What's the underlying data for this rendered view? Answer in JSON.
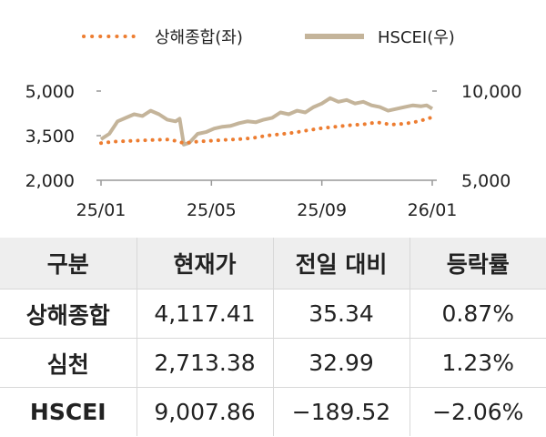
{
  "chart_data": {
    "type": "line",
    "legend": {
      "placement": "top-center",
      "entries": [
        {
          "label": "상해종합(좌)",
          "color": "#ed7d31",
          "style": "dotted"
        },
        {
          "label": "HSCEI(우)",
          "color": "#c4b49a",
          "style": "solid"
        }
      ]
    },
    "x_tick_labels": [
      "25/01",
      "25/05",
      "25/09",
      "26/01"
    ],
    "x_tick_positions": [
      0,
      4,
      8,
      12
    ],
    "xlim": [
      0,
      12
    ],
    "y_left": {
      "ticks": [
        2000,
        3500,
        5000
      ],
      "tick_labels": [
        "2,000",
        "3,500",
        "5,000"
      ],
      "ylim": [
        2000,
        5000
      ]
    },
    "y_right": {
      "ticks": [
        5000,
        10000
      ],
      "tick_labels": [
        "5,000",
        "10,000"
      ],
      "ylim": [
        5000,
        10000
      ]
    },
    "series": [
      {
        "name": "상해종합(좌)",
        "axis": "left",
        "color": "#ed7d31",
        "x": [
          0,
          0.5,
          1,
          1.5,
          2,
          2.5,
          3,
          3.5,
          4,
          4.5,
          5,
          5.5,
          6,
          6.5,
          7,
          7.5,
          8,
          8.5,
          9,
          9.5,
          10,
          10.5,
          11,
          11.5,
          12
        ],
        "values": [
          3250,
          3300,
          3320,
          3340,
          3360,
          3370,
          3250,
          3300,
          3330,
          3360,
          3380,
          3420,
          3500,
          3550,
          3600,
          3680,
          3750,
          3800,
          3850,
          3880,
          3950,
          3870,
          3900,
          3980,
          4117
        ]
      },
      {
        "name": "HSCEI(우)",
        "axis": "right",
        "color": "#c4b49a",
        "x": [
          0,
          0.3,
          0.6,
          0.9,
          1.2,
          1.5,
          1.8,
          2.1,
          2.4,
          2.7,
          2.85,
          3,
          3.2,
          3.5,
          3.8,
          4.1,
          4.4,
          4.7,
          5,
          5.3,
          5.6,
          5.9,
          6.2,
          6.5,
          6.8,
          7.1,
          7.4,
          7.7,
          8,
          8.3,
          8.6,
          8.9,
          9.2,
          9.5,
          9.8,
          10.1,
          10.4,
          10.7,
          11,
          11.3,
          11.6,
          11.8,
          12
        ],
        "values": [
          7300,
          7600,
          8300,
          8500,
          8700,
          8600,
          8900,
          8700,
          8400,
          8300,
          8450,
          7000,
          7100,
          7600,
          7700,
          7900,
          8000,
          8050,
          8200,
          8300,
          8250,
          8400,
          8500,
          8800,
          8700,
          8900,
          8800,
          9100,
          9300,
          9600,
          9400,
          9500,
          9300,
          9400,
          9200,
          9100,
          8900,
          9000,
          9100,
          9200,
          9150,
          9200,
          9008
        ]
      }
    ]
  },
  "table": {
    "headers": [
      "구분",
      "현재가",
      "전일 대비",
      "등락률"
    ],
    "rows": [
      {
        "name": "상해종합",
        "price": "4,117.41",
        "change": "35.34",
        "rate": "0.87%"
      },
      {
        "name": "심천",
        "price": "2,713.38",
        "change": "32.99",
        "rate": "1.23%"
      },
      {
        "name": "HSCEI",
        "price": "9,007.86",
        "change": "−189.52",
        "rate": "−2.06%"
      }
    ]
  }
}
